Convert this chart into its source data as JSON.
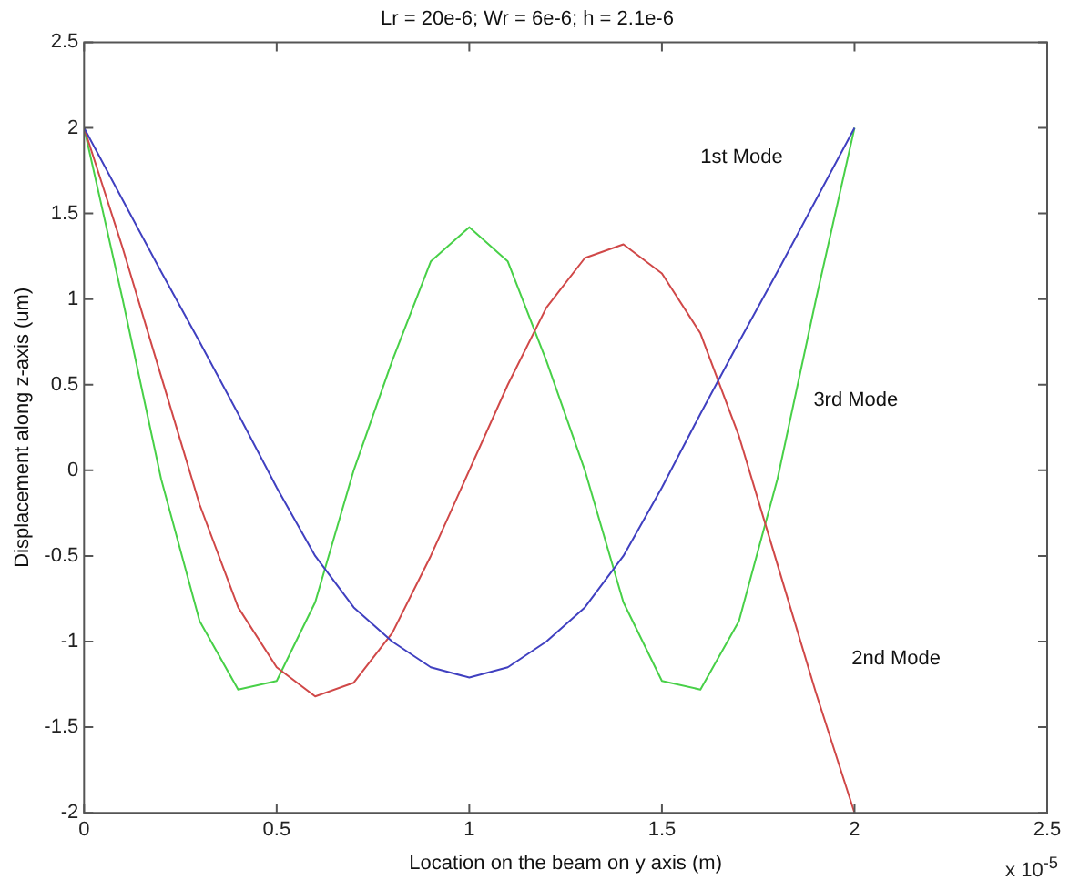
{
  "chart_data": {
    "type": "line",
    "title": "Lr = 20e-6; Wr = 6e-6; h = 2.1e-6",
    "xlabel": "Location on the beam on y axis (m)",
    "ylabel": "Displacement along z-axis (um)",
    "x": [
      0,
      0.1,
      0.2,
      0.3,
      0.4,
      0.5,
      0.6,
      0.7,
      0.8,
      0.9,
      1,
      1.1,
      1.2,
      1.3,
      1.4,
      1.5,
      1.6,
      1.7,
      1.8,
      1.9,
      2
    ],
    "series": [
      {
        "name": "1st Mode",
        "color": "#4040c0",
        "values": [
          2,
          1.58,
          1.16,
          0.75,
          0.33,
          -0.1,
          -0.5,
          -0.8,
          -1.0,
          -1.15,
          -1.21,
          -1.15,
          -1.0,
          -0.8,
          -0.5,
          -0.1,
          0.33,
          0.75,
          1.16,
          1.58,
          2
        ]
      },
      {
        "name": "2nd Mode",
        "color": "#d04848",
        "values": [
          2,
          1.3,
          0.55,
          -0.2,
          -0.8,
          -1.15,
          -1.32,
          -1.24,
          -0.95,
          -0.5,
          0,
          0.5,
          0.95,
          1.24,
          1.32,
          1.15,
          0.8,
          0.2,
          -0.55,
          -1.3,
          -2
        ]
      },
      {
        "name": "3rd Mode",
        "color": "#48d048",
        "values": [
          2,
          1.0,
          -0.05,
          -0.88,
          -1.28,
          -1.23,
          -0.77,
          0,
          0.64,
          1.22,
          1.42,
          1.22,
          0.64,
          0,
          -0.77,
          -1.23,
          -1.28,
          -0.88,
          -0.05,
          1.0,
          2
        ]
      }
    ],
    "xlim": [
      0,
      2.5
    ],
    "xticks": [
      0,
      0.5,
      1,
      1.5,
      2,
      2.5
    ],
    "ylim": [
      -2,
      2.5
    ],
    "yticks": [
      -2,
      -1.5,
      -1,
      -0.5,
      0,
      0.5,
      1,
      1.5,
      2,
      2.5
    ],
    "grid": false,
    "legend": false,
    "marker": "none",
    "line_style": "solid",
    "annotations": [
      "x 10$^{-5}$"
    ]
  }
}
